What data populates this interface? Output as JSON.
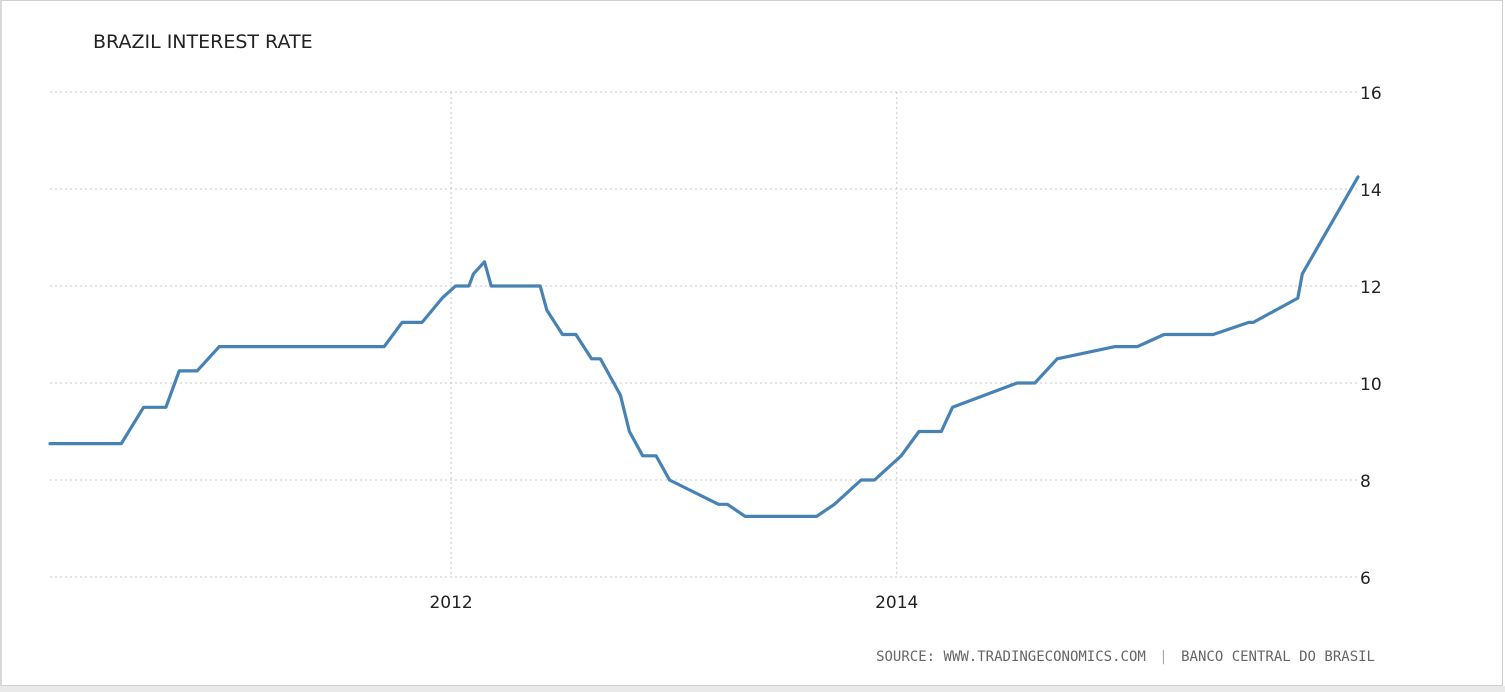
{
  "chart_data": {
    "type": "line",
    "title": "BRAZIL INTEREST RATE",
    "xlabel": "",
    "ylabel": "",
    "ylim": [
      6,
      16
    ],
    "xlim": [
      2010.2,
      2016.07
    ],
    "y_ticks": [
      6,
      8,
      10,
      12,
      14,
      16
    ],
    "x_ticks": [
      2012,
      2014
    ],
    "grid": "dotted",
    "y_axis_side": "right",
    "line_color": "#4682b4",
    "series": [
      {
        "x": [
          2010.2,
          2010.27,
          2010.44,
          2010.52,
          2010.62,
          2010.72,
          2010.78,
          2010.86,
          2010.96,
          2011.0,
          2011.54,
          2011.62,
          2011.7,
          2011.78,
          2011.87,
          2011.96,
          2012.02,
          2012.08,
          2012.1,
          2012.15,
          2012.18,
          2012.4,
          2012.43,
          2012.5,
          2012.56,
          2012.63,
          2012.67,
          2012.76,
          2012.8,
          2012.86,
          2012.92,
          2012.98,
          2013.2,
          2013.24,
          2013.32,
          2013.36,
          2013.44,
          2013.48,
          2013.52,
          2013.64,
          2013.72,
          2013.84,
          2013.9,
          2014.02,
          2014.1,
          2014.2,
          2014.25,
          2014.54,
          2014.62,
          2014.72,
          2014.98,
          2015.08,
          2015.2,
          2015.34,
          2015.42,
          2015.58,
          2015.6,
          2015.8,
          2015.82,
          2016.07
        ],
        "y": [
          8.75,
          8.75,
          8.75,
          8.75,
          9.5,
          9.5,
          10.25,
          10.25,
          10.75,
          10.75,
          10.75,
          10.75,
          10.75,
          11.25,
          11.25,
          11.75,
          12.0,
          12.0,
          12.25,
          12.5,
          12.0,
          12.0,
          11.5,
          11.0,
          11.0,
          10.5,
          10.5,
          9.75,
          9.0,
          8.5,
          8.5,
          8.0,
          7.5,
          7.5,
          7.25,
          7.25,
          7.25,
          7.25,
          7.25,
          7.25,
          7.5,
          8.0,
          8.0,
          8.5,
          9.0,
          9.0,
          9.5,
          10.0,
          10.0,
          10.5,
          10.75,
          10.75,
          11.0,
          11.0,
          11.0,
          11.25,
          11.25,
          11.75,
          12.25,
          14.25
        ]
      }
    ]
  },
  "source": {
    "prefix": "SOURCE:",
    "site": "WWW.TRADINGECONOMICS.COM",
    "separator": "|",
    "origin": "BANCO CENTRAL DO BRASIL"
  }
}
